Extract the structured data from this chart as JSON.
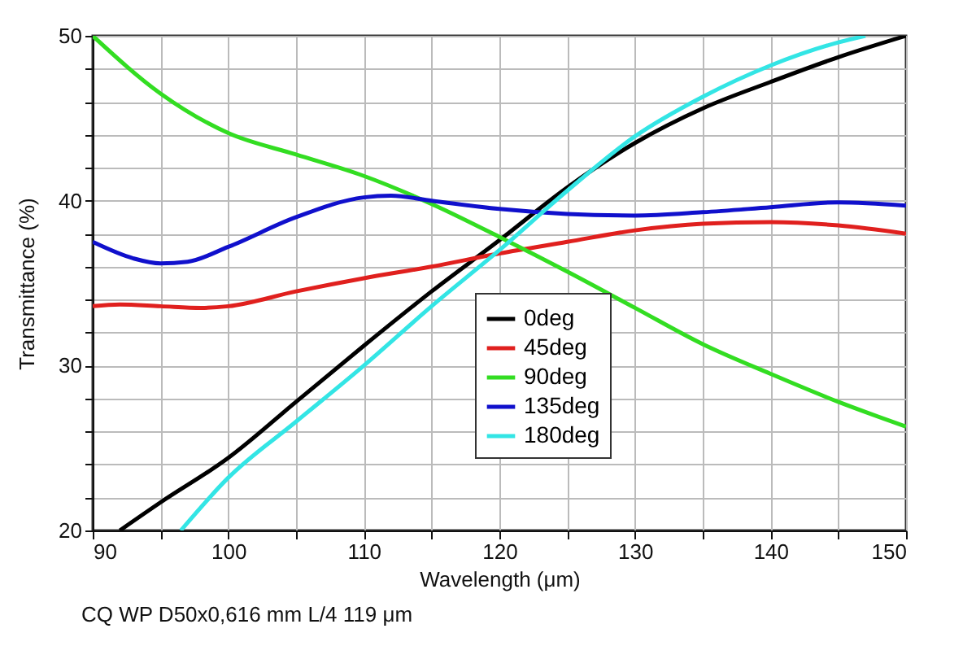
{
  "chart_data": {
    "type": "line",
    "xlabel": "Wavelength (μm)",
    "ylabel": "Transmittance (%)",
    "annotations": [
      "CQ WP D50x0,616 mm L/4 119 μm"
    ],
    "xlim": [
      90,
      150
    ],
    "ylim": [
      20,
      50
    ],
    "xticks": [
      90,
      {
        "value": 95,
        "label": null
      },
      100,
      {
        "value": 105,
        "label": null
      },
      110,
      {
        "value": 115,
        "label": null
      },
      120,
      {
        "value": 125,
        "label": null
      },
      130,
      {
        "value": 135,
        "label": null
      },
      140,
      {
        "value": 145,
        "label": null
      },
      150
    ],
    "yticks": [
      20,
      {
        "value": 22,
        "label": null
      },
      {
        "value": 24,
        "label": null
      },
      {
        "value": 26,
        "label": null
      },
      {
        "value": 28,
        "label": null
      },
      30,
      {
        "value": 32,
        "label": null
      },
      {
        "value": 34,
        "label": null
      },
      {
        "value": 36,
        "label": null
      },
      {
        "value": 38,
        "label": null
      },
      40,
      {
        "value": 42,
        "label": null
      },
      {
        "value": 44,
        "label": null
      },
      {
        "value": 46,
        "label": null
      },
      {
        "value": 48,
        "label": null
      },
      50
    ],
    "grid": true,
    "legend": "bottom right",
    "line_style": "solid",
    "series": [
      {
        "name": "0deg",
        "color": "#000000",
        "x": [
          92,
          95,
          100,
          105,
          110,
          115,
          120,
          125,
          130,
          135,
          140,
          145,
          150
        ],
        "values": [
          20,
          21.7,
          24.4,
          27.8,
          31.2,
          34.5,
          37.6,
          40.8,
          43.5,
          45.6,
          47.2,
          48.7,
          50
        ]
      },
      {
        "name": "45deg",
        "color": "#e0201e",
        "x": [
          90,
          92,
          95,
          98,
          100,
          105,
          110,
          115,
          120,
          125,
          130,
          135,
          140,
          145,
          150
        ],
        "values": [
          33.6,
          33.7,
          33.6,
          33.5,
          33.6,
          34.5,
          35.3,
          36,
          36.8,
          37.5,
          38.2,
          38.6,
          38.7,
          38.5,
          38
        ]
      },
      {
        "name": "90deg",
        "color": "#33dd22",
        "x": [
          90,
          95,
          100,
          105,
          110,
          115,
          120,
          125,
          130,
          135,
          140,
          145,
          150
        ],
        "values": [
          50,
          46.5,
          44.1,
          42.8,
          41.5,
          39.8,
          37.8,
          35.7,
          33.5,
          31.3,
          29.5,
          27.8,
          26.3
        ]
      },
      {
        "name": "135deg",
        "color": "#1010cc",
        "x": [
          90,
          93,
          95,
          97,
          100,
          105,
          110,
          112,
          115,
          120,
          125,
          130,
          135,
          140,
          145,
          150
        ],
        "values": [
          37.5,
          36.5,
          36.2,
          36.3,
          37.2,
          39,
          40.2,
          40.3,
          40,
          39.5,
          39.2,
          39.1,
          39.3,
          39.6,
          39.9,
          39.7
        ]
      },
      {
        "name": "180deg",
        "color": "#33e5e5",
        "x": [
          96.5,
          100,
          105,
          110,
          115,
          120,
          125,
          130,
          135,
          140,
          145,
          147
        ],
        "values": [
          20,
          23.2,
          26.6,
          30,
          33.6,
          37,
          40.6,
          43.9,
          46.3,
          48.2,
          49.6,
          50
        ]
      }
    ]
  }
}
